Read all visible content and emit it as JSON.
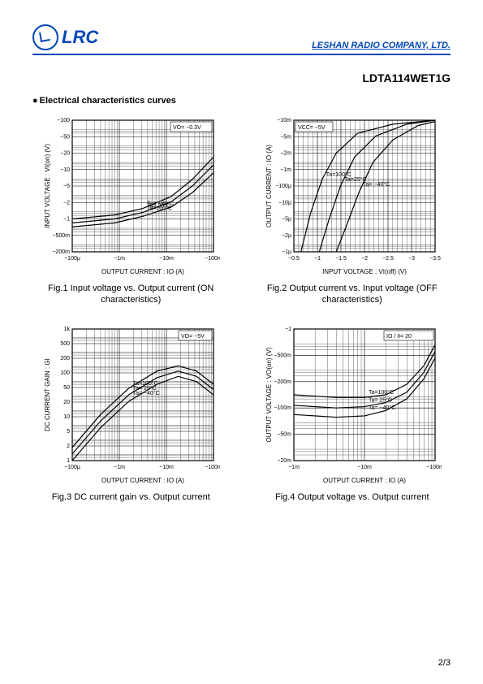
{
  "header": {
    "logo_text": "LRC",
    "company": "LESHAN RADIO COMPANY, LTD."
  },
  "part_number": "LDTA114WET1G",
  "section_title": "Electrical characteristics curves",
  "page_number": "2/3",
  "chart_style": {
    "grid_color": "#000000",
    "grid_stroke": 0.3,
    "axis_stroke": 1.2,
    "curve_stroke": 1.2,
    "font_size_label": 8,
    "font_size_tick": 7,
    "font_size_annotation": 7,
    "background": "#ffffff"
  },
  "fig1": {
    "type": "loglog",
    "caption": "Fig.1  Input voltage vs. Output current\n(ON characteristics)",
    "xlabel": "OUTPUT CURRENT : IO (A)",
    "ylabel": "INPUT VOLTAGE : VI(on) (V)",
    "xticks": [
      "−100μ",
      "−1m",
      "−10m",
      "−100m"
    ],
    "yticks": [
      "−200m",
      "−500m",
      "−1",
      "−2",
      "−5",
      "−10",
      "−20",
      "−50",
      "−100"
    ],
    "annotation_box": "VO= −0.3V",
    "curves": [
      {
        "label": "Ta= −40°C",
        "points": [
          [
            0,
            0.25
          ],
          [
            0.3,
            0.28
          ],
          [
            0.5,
            0.33
          ],
          [
            0.7,
            0.42
          ],
          [
            0.85,
            0.55
          ],
          [
            1.0,
            0.72
          ]
        ]
      },
      {
        "label": "Ta= 25°C",
        "points": [
          [
            0,
            0.22
          ],
          [
            0.3,
            0.25
          ],
          [
            0.5,
            0.3
          ],
          [
            0.7,
            0.38
          ],
          [
            0.85,
            0.5
          ],
          [
            1.0,
            0.66
          ]
        ]
      },
      {
        "label": "Ta=100°C",
        "points": [
          [
            0,
            0.19
          ],
          [
            0.3,
            0.22
          ],
          [
            0.5,
            0.27
          ],
          [
            0.7,
            0.34
          ],
          [
            0.85,
            0.45
          ],
          [
            1.0,
            0.6
          ]
        ]
      }
    ]
  },
  "fig2": {
    "type": "semilogx",
    "caption": "Fig.2  Output current vs. Input voltage\n(OFF characteristics)",
    "xlabel": "INPUT VOLTAGE : VI(off) (V)",
    "ylabel": "OUTPUT CURRENT : IO (A)",
    "xticks": [
      "−0.5",
      "−1",
      "−1.5",
      "−2",
      "−2.5",
      "−3",
      "−3.5"
    ],
    "yticks": [
      "−1μ",
      "−2μ",
      "−5μ",
      "−10μ",
      "−100μ",
      "−1m",
      "−2m",
      "−5m",
      "−10m"
    ],
    "annotation_box": "VCC= −5V",
    "curves": [
      {
        "label": "Ta=100°C",
        "points": [
          [
            0.05,
            0.0
          ],
          [
            0.12,
            0.3
          ],
          [
            0.2,
            0.55
          ],
          [
            0.3,
            0.75
          ],
          [
            0.45,
            0.9
          ],
          [
            0.7,
            0.97
          ],
          [
            1.0,
            1.0
          ]
        ]
      },
      {
        "label": "Ta=25°C",
        "points": [
          [
            0.18,
            0.0
          ],
          [
            0.25,
            0.25
          ],
          [
            0.33,
            0.5
          ],
          [
            0.43,
            0.72
          ],
          [
            0.58,
            0.88
          ],
          [
            0.8,
            0.97
          ],
          [
            1.0,
            1.0
          ]
        ]
      },
      {
        "label": "Ta= −40°C",
        "points": [
          [
            0.3,
            0.0
          ],
          [
            0.38,
            0.22
          ],
          [
            0.46,
            0.45
          ],
          [
            0.56,
            0.68
          ],
          [
            0.7,
            0.85
          ],
          [
            0.88,
            0.96
          ],
          [
            1.0,
            0.99
          ]
        ]
      }
    ]
  },
  "fig3": {
    "type": "loglog",
    "caption": "Fig.3  DC current gain vs. Output current",
    "xlabel": "OUTPUT CURRENT : IO (A)",
    "ylabel": "DC CURRENT GAIN : GI",
    "xticks": [
      "−100μ",
      "−1m",
      "−10m",
      "−100m"
    ],
    "yticks": [
      "1",
      "2",
      "5",
      "10",
      "20",
      "50",
      "100",
      "200",
      "500",
      "1k"
    ],
    "annotation_box": "VO= −5V",
    "curves": [
      {
        "label": "Ta=100°C",
        "points": [
          [
            0.0,
            0.1
          ],
          [
            0.2,
            0.35
          ],
          [
            0.4,
            0.55
          ],
          [
            0.6,
            0.68
          ],
          [
            0.75,
            0.72
          ],
          [
            0.88,
            0.68
          ],
          [
            1.0,
            0.58
          ]
        ]
      },
      {
        "label": "Ta= 25°C",
        "points": [
          [
            0.0,
            0.05
          ],
          [
            0.2,
            0.3
          ],
          [
            0.4,
            0.5
          ],
          [
            0.6,
            0.63
          ],
          [
            0.75,
            0.68
          ],
          [
            0.88,
            0.64
          ],
          [
            1.0,
            0.54
          ]
        ]
      },
      {
        "label": "Ta= −40°C",
        "points": [
          [
            0.0,
            0.0
          ],
          [
            0.2,
            0.25
          ],
          [
            0.4,
            0.45
          ],
          [
            0.6,
            0.58
          ],
          [
            0.75,
            0.64
          ],
          [
            0.88,
            0.6
          ],
          [
            1.0,
            0.5
          ]
        ]
      }
    ]
  },
  "fig4": {
    "type": "loglog",
    "caption": "Fig.4  Output voltage vs. Output current",
    "xlabel": "OUTPUT CURRENT : IO (A)",
    "ylabel": "OUTPUT VOLTAGE : VO(on) (V)",
    "xticks": [
      "−1m",
      "−10m",
      "−100m"
    ],
    "yticks": [
      "−20m",
      "−50m",
      "−100m",
      "−200m",
      "−500m",
      "−1"
    ],
    "annotation_box": "IO / II= 20",
    "curves": [
      {
        "label": "Ta=100°C",
        "points": [
          [
            0.0,
            0.5
          ],
          [
            0.3,
            0.48
          ],
          [
            0.5,
            0.48
          ],
          [
            0.65,
            0.5
          ],
          [
            0.8,
            0.58
          ],
          [
            0.92,
            0.72
          ],
          [
            1.0,
            0.88
          ]
        ]
      },
      {
        "label": "Ta= 25°C",
        "points": [
          [
            0.0,
            0.42
          ],
          [
            0.3,
            0.4
          ],
          [
            0.5,
            0.41
          ],
          [
            0.65,
            0.44
          ],
          [
            0.8,
            0.52
          ],
          [
            0.92,
            0.67
          ],
          [
            1.0,
            0.83
          ]
        ]
      },
      {
        "label": "Ta= −40°C",
        "points": [
          [
            0.0,
            0.35
          ],
          [
            0.3,
            0.33
          ],
          [
            0.5,
            0.34
          ],
          [
            0.65,
            0.38
          ],
          [
            0.8,
            0.47
          ],
          [
            0.92,
            0.62
          ],
          [
            1.0,
            0.78
          ]
        ]
      }
    ]
  }
}
